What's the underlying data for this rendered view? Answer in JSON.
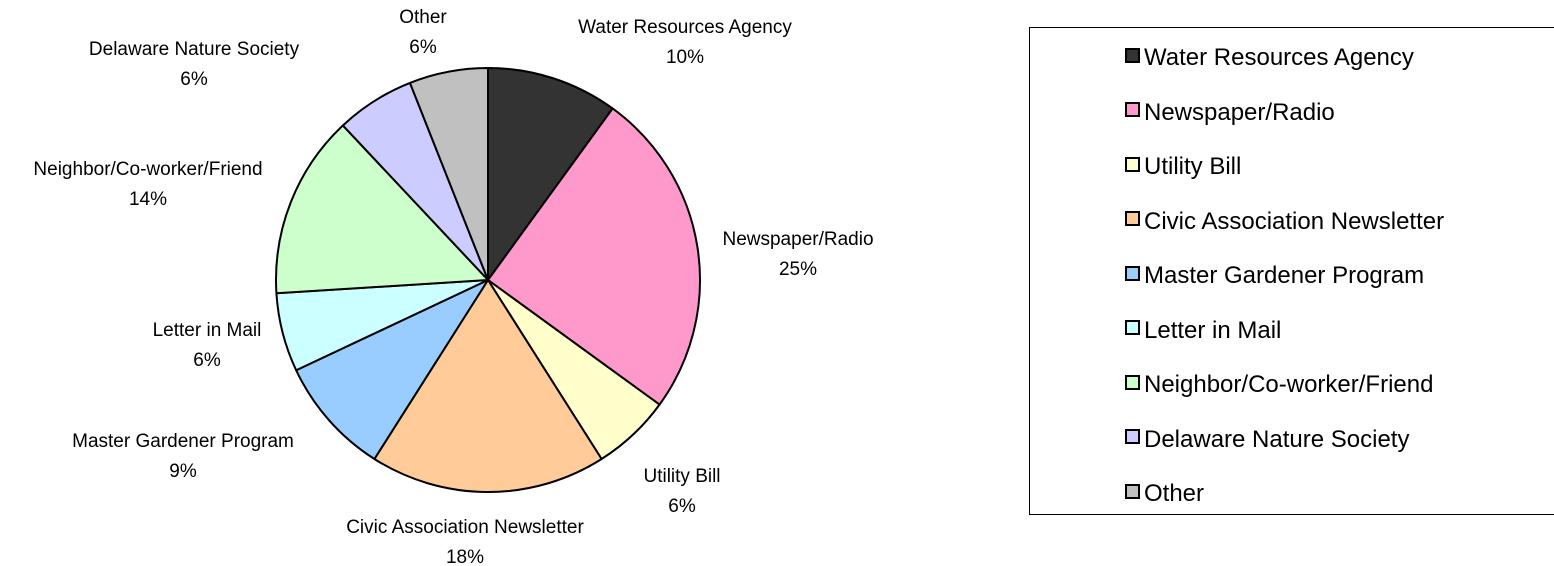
{
  "chart_data": {
    "type": "pie",
    "title": "",
    "start_angle_deg": 0,
    "direction": "clockwise",
    "legend_position": "right",
    "slices": [
      {
        "label": "Water Resources Agency",
        "value": 10,
        "value_label": "10%",
        "color": "#333333"
      },
      {
        "label": "Newspaper/Radio",
        "value": 25,
        "value_label": "25%",
        "color": "#FF99CC"
      },
      {
        "label": "Utility Bill",
        "value": 6,
        "value_label": "6%",
        "color": "#FFFFCC"
      },
      {
        "label": "Civic Association Newsletter",
        "value": 18,
        "value_label": "18%",
        "color": "#FFCC99"
      },
      {
        "label": "Master Gardener Program",
        "value": 9,
        "value_label": "9%",
        "color": "#99CCFF"
      },
      {
        "label": "Letter in Mail",
        "value": 6,
        "value_label": "6%",
        "color": "#CCFFFF"
      },
      {
        "label": "Neighbor/Co-worker/Friend",
        "value": 14,
        "value_label": "14%",
        "color": "#CCFFCC"
      },
      {
        "label": "Delaware Nature Society",
        "value": 6,
        "value_label": "6%",
        "color": "#CCCCFF"
      },
      {
        "label": "Other",
        "value": 6,
        "value_label": "6%",
        "color": "#C0C0C0"
      }
    ]
  },
  "legend": {
    "items": [
      {
        "label": "Water Resources Agency",
        "color": "#333333"
      },
      {
        "label": "Newspaper/Radio",
        "color": "#FF99CC"
      },
      {
        "label": "Utility Bill",
        "color": "#FFFFCC"
      },
      {
        "label": "Civic Association Newsletter",
        "color": "#FFCC99"
      },
      {
        "label": "Master Gardener Program",
        "color": "#99CCFF"
      },
      {
        "label": "Letter in Mail",
        "color": "#CCFFFF"
      },
      {
        "label": "Neighbor/Co-worker/Friend",
        "color": "#CCFFCC"
      },
      {
        "label": "Delaware Nature Society",
        "color": "#CCCCFF"
      },
      {
        "label": "Other",
        "color": "#C0C0C0"
      }
    ]
  }
}
